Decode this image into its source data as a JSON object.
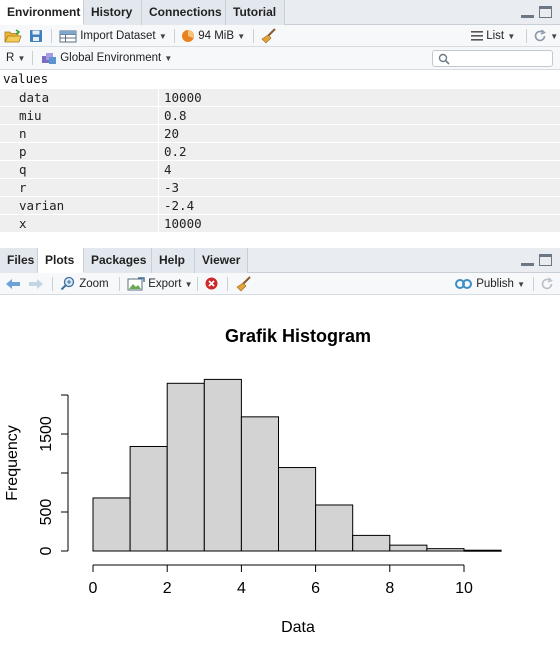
{
  "env_pane": {
    "tabs": [
      "Environment",
      "History",
      "Connections",
      "Tutorial"
    ],
    "toolbar": {
      "import_dataset": "Import Dataset",
      "memory": "94 MiB",
      "list_view": "List"
    },
    "language": "R",
    "scope": "Global Environment",
    "section": "values",
    "variables": [
      {
        "name": "data",
        "value": "10000"
      },
      {
        "name": "miu",
        "value": "0.8"
      },
      {
        "name": "n",
        "value": "20"
      },
      {
        "name": "p",
        "value": "0.2"
      },
      {
        "name": "q",
        "value": "4"
      },
      {
        "name": "r",
        "value": "-3"
      },
      {
        "name": "varian",
        "value": "-2.4"
      },
      {
        "name": "x",
        "value": "10000"
      }
    ]
  },
  "plots_pane": {
    "tabs": [
      "Files",
      "Plots",
      "Packages",
      "Help",
      "Viewer"
    ],
    "toolbar": {
      "zoom": "Zoom",
      "export": "Export",
      "publish": "Publish"
    }
  },
  "chart_data": {
    "type": "bar",
    "title": "Grafik Histogram",
    "xlabel": "Data",
    "ylabel": "Frequency",
    "bins": [
      [
        0,
        1
      ],
      [
        1,
        2
      ],
      [
        2,
        3
      ],
      [
        3,
        4
      ],
      [
        4,
        5
      ],
      [
        5,
        6
      ],
      [
        6,
        7
      ],
      [
        7,
        8
      ],
      [
        8,
        9
      ],
      [
        9,
        10
      ],
      [
        10,
        11
      ]
    ],
    "values": [
      680,
      1340,
      2150,
      2200,
      1720,
      1070,
      590,
      200,
      75,
      30,
      10
    ],
    "xlim": [
      0,
      11
    ],
    "ylim": [
      0,
      2000
    ],
    "x_ticks": [
      "0",
      "2",
      "4",
      "6",
      "8",
      "10"
    ],
    "y_ticks": [
      "0",
      "500",
      "1500"
    ],
    "bar_color": "#d3d3d3",
    "grid": false
  }
}
